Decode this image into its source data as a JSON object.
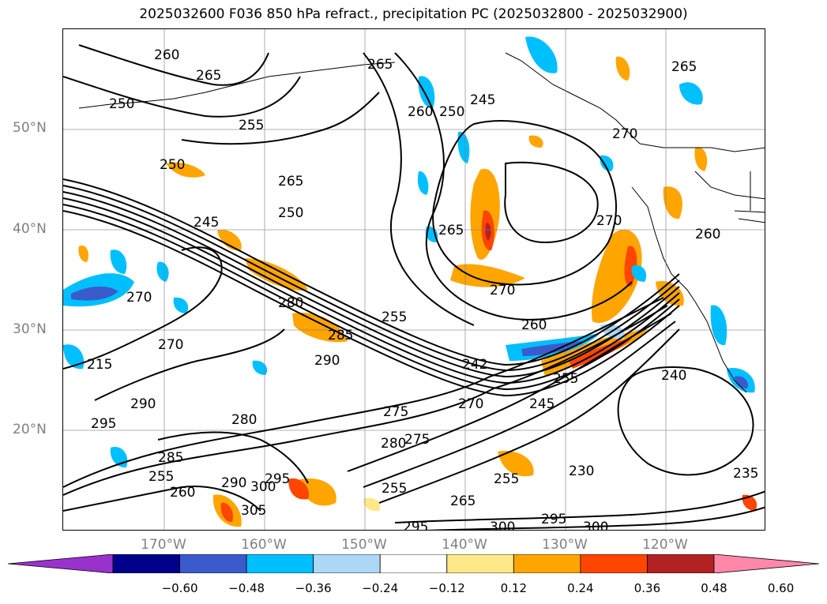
{
  "title": "2025032600 F036 850 hPa refract., precipitation PC (2025032800 - 2025032900)",
  "lat_labels": [
    "50°N",
    "40°N",
    "30°N",
    "20°N"
  ],
  "lon_labels": [
    "170°W",
    "160°W",
    "150°W",
    "140°W",
    "130°W",
    "120°W"
  ],
  "colorbar": {
    "ticks": [
      "−0.60",
      "−0.48",
      "−0.36",
      "−0.24",
      "−0.12",
      "0.12",
      "0.24",
      "0.36",
      "0.48",
      "0.60"
    ],
    "colors": [
      "#9932cc",
      "#00008b",
      "#3a5bcc",
      "#00bfff",
      "#add8f5",
      "#ffffff",
      "#ffe88a",
      "#ffa500",
      "#ff4500",
      "#b22222",
      "#ff88aa"
    ]
  },
  "contour_labels": [
    "260",
    "265",
    "250",
    "255",
    "250",
    "265",
    "250",
    "245",
    "265",
    "260",
    "250",
    "245",
    "265",
    "270",
    "270",
    "265",
    "260",
    "270",
    "280",
    "285",
    "290",
    "255",
    "242",
    "260",
    "270",
    "215",
    "270",
    "295",
    "290",
    "280",
    "275",
    "275",
    "280",
    "270",
    "245",
    "255",
    "240",
    "285",
    "255",
    "260",
    "290",
    "305",
    "300",
    "295",
    "255",
    "265",
    "230",
    "235",
    "295",
    "300",
    "300",
    "295",
    "255"
  ],
  "map_colors": {
    "land_outline": "#000000",
    "grid": "#808080",
    "contour": "#000000"
  }
}
